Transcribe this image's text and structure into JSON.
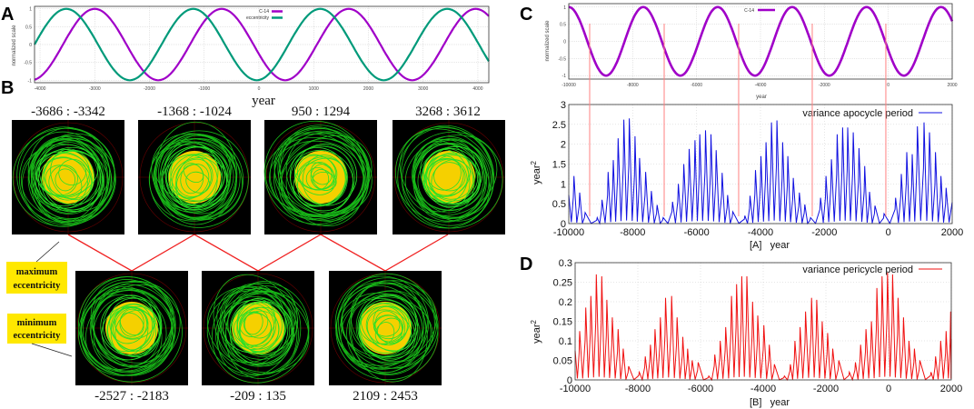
{
  "panels": {
    "a": "A",
    "b": "B",
    "c": "C",
    "d": "D"
  },
  "chart_data": [
    {
      "id": "A",
      "type": "line",
      "xlabel": "year",
      "ylabel": "normalized scale",
      "xlim": [
        -4100,
        4200
      ],
      "ylim": [
        -1.07,
        1.07
      ],
      "xticks": [
        -4000,
        -3000,
        -2000,
        -1000,
        0,
        1000,
        2000,
        3000,
        4000
      ],
      "yticks": [
        -1,
        -0.5,
        0,
        0.5,
        1
      ],
      "grid": true,
      "legend": "top-center",
      "series": [
        {
          "name": "C-14",
          "color": "#a000c8",
          "function": "cosine",
          "period": 2320,
          "peak_year": -3000
        },
        {
          "name": "eccentricity",
          "color": "#009a7a",
          "function": "cosine",
          "period": 2320,
          "peak_year": -3520
        }
      ]
    },
    {
      "id": "C-top",
      "type": "line",
      "xlabel": "year",
      "ylabel": "normalized scale",
      "xlim": [
        -10000,
        2000
      ],
      "ylim": [
        -1.1,
        1.1
      ],
      "xticks": [
        -10000,
        -8000,
        -6000,
        -4000,
        -2000,
        0,
        2000
      ],
      "yticks": [
        -1,
        -0.5,
        0,
        0.5,
        1
      ],
      "grid": true,
      "legend": "top-center",
      "series": [
        {
          "name": "C-14",
          "color": "#a000c8",
          "function": "cosine",
          "period": 2330,
          "peak_year": -10000
        }
      ],
      "marker_lines_years": [
        -9346,
        -7014,
        -4683,
        -2380,
        -77
      ]
    },
    {
      "id": "C-bottom",
      "type": "line",
      "xlabel": "[A]   year",
      "ylabel": "year",
      "ylabel_sup": "2",
      "xlim": [
        -10000,
        2000
      ],
      "ylim": [
        0,
        3
      ],
      "xticks": [
        -10000,
        -8000,
        -6000,
        -4000,
        -2000,
        0,
        2000
      ],
      "yticks": [
        0,
        0.5,
        1,
        1.5,
        2,
        2.5,
        3
      ],
      "grid": true,
      "legend": "top-right",
      "series": [
        {
          "name": "variance apocycle period",
          "color": "#1010e0",
          "peaks": [
            [
              -9839,
              1.2
            ],
            [
              -9659,
              0.78
            ],
            [
              -9489,
              0.28
            ],
            [
              -9110,
              0.15
            ],
            [
              -8958,
              0.6
            ],
            [
              -8769,
              1.3
            ],
            [
              -8608,
              1.6
            ],
            [
              -8456,
              2.15
            ],
            [
              -8276,
              2.62
            ],
            [
              -8106,
              2.65
            ],
            [
              -7926,
              2.2
            ],
            [
              -7784,
              1.65
            ],
            [
              -7595,
              1.3
            ],
            [
              -7415,
              0.82
            ],
            [
              -7235,
              0.47
            ],
            [
              -7046,
              0.15
            ],
            [
              -6752,
              0.55
            ],
            [
              -6572,
              1.0
            ],
            [
              -6401,
              1.5
            ],
            [
              -6231,
              1.88
            ],
            [
              -6051,
              2.1
            ],
            [
              -5900,
              2.25
            ],
            [
              -5720,
              2.35
            ],
            [
              -5549,
              2.25
            ],
            [
              -5388,
              1.85
            ],
            [
              -5199,
              1.28
            ],
            [
              -5028,
              0.72
            ],
            [
              -4867,
              0.3
            ],
            [
              -4488,
              0.2
            ],
            [
              -4327,
              0.7
            ],
            [
              -4157,
              1.35
            ],
            [
              -3986,
              1.7
            ],
            [
              -3826,
              2.05
            ],
            [
              -3655,
              2.55
            ],
            [
              -3485,
              2.6
            ],
            [
              -3305,
              2.05
            ],
            [
              -3144,
              1.7
            ],
            [
              -2973,
              1.15
            ],
            [
              -2784,
              0.78
            ],
            [
              -2613,
              0.48
            ],
            [
              -2434,
              0.15
            ],
            [
              -2121,
              0.65
            ],
            [
              -1950,
              1.2
            ],
            [
              -1780,
              1.62
            ],
            [
              -1600,
              2.25
            ],
            [
              -1430,
              2.42
            ],
            [
              -1269,
              2.42
            ],
            [
              -1098,
              2.3
            ],
            [
              -918,
              1.9
            ],
            [
              -738,
              1.45
            ],
            [
              -587,
              0.8
            ],
            [
              -416,
              0.45
            ],
            [
              -132,
              0.25
            ],
            [
              228,
              0.65
            ],
            [
              408,
              1.25
            ],
            [
              578,
              1.8
            ],
            [
              749,
              1.75
            ],
            [
              910,
              2.45
            ],
            [
              1118,
              2.55
            ],
            [
              1288,
              2.3
            ],
            [
              1478,
              1.8
            ],
            [
              1648,
              1.2
            ],
            [
              1809,
              0.9
            ]
          ]
        }
      ]
    },
    {
      "id": "D",
      "type": "line",
      "xlabel": "[B]   year",
      "ylabel": "year",
      "ylabel_sup": "2",
      "xlim": [
        -10000,
        2000
      ],
      "ylim": [
        0,
        0.3
      ],
      "xticks": [
        -10000,
        -8000,
        -6000,
        -4000,
        -2000,
        0,
        2000
      ],
      "yticks": [
        0,
        0.05,
        0.1,
        0.15,
        0.2,
        0.25,
        0.3
      ],
      "grid": true,
      "legend": "top-right",
      "series": [
        {
          "name": "variance pericycle period",
          "color": "#f01010",
          "peaks": [
            [
              -9855,
              0.125
            ],
            [
              -9662,
              0.185
            ],
            [
              -9498,
              0.215
            ],
            [
              -9325,
              0.27
            ],
            [
              -9151,
              0.265
            ],
            [
              -8987,
              0.205
            ],
            [
              -8814,
              0.16
            ],
            [
              -8630,
              0.13
            ],
            [
              -8466,
              0.08
            ],
            [
              -8293,
              0.035
            ],
            [
              -7955,
              0.02
            ],
            [
              -7762,
              0.06
            ],
            [
              -7598,
              0.09
            ],
            [
              -7453,
              0.13
            ],
            [
              -7280,
              0.16
            ],
            [
              -7116,
              0.21
            ],
            [
              -6923,
              0.215
            ],
            [
              -6749,
              0.16
            ],
            [
              -6566,
              0.11
            ],
            [
              -6412,
              0.08
            ],
            [
              -6267,
              0.05
            ],
            [
              -6074,
              0.045
            ],
            [
              -5737,
              0.01
            ],
            [
              -5544,
              0.065
            ],
            [
              -5370,
              0.1
            ],
            [
              -5196,
              0.135
            ],
            [
              -5013,
              0.215
            ],
            [
              -4849,
              0.245
            ],
            [
              -4685,
              0.265
            ],
            [
              -4521,
              0.265
            ],
            [
              -4338,
              0.2
            ],
            [
              -4174,
              0.165
            ],
            [
              -3981,
              0.14
            ],
            [
              -3807,
              0.09
            ],
            [
              -3643,
              0.04
            ],
            [
              -3325,
              0.01
            ],
            [
              -3132,
              0.04
            ],
            [
              -2987,
              0.1
            ],
            [
              -2823,
              0.135
            ],
            [
              -2650,
              0.175
            ],
            [
              -2457,
              0.21
            ],
            [
              -2293,
              0.205
            ],
            [
              -2119,
              0.15
            ],
            [
              -1946,
              0.12
            ],
            [
              -1782,
              0.08
            ],
            [
              -1589,
              0.05
            ],
            [
              -1251,
              0.02
            ],
            [
              -1058,
              0.045
            ],
            [
              -894,
              0.09
            ],
            [
              -721,
              0.13
            ],
            [
              -547,
              0.15
            ],
            [
              -373,
              0.235
            ],
            [
              -209,
              0.265
            ],
            [
              -36,
              0.275
            ],
            [
              128,
              0.27
            ],
            [
              302,
              0.21
            ],
            [
              476,
              0.16
            ],
            [
              649,
              0.1
            ],
            [
              823,
              0.08
            ],
            [
              997,
              0.05
            ],
            [
              1353,
              0.02
            ],
            [
              1498,
              0.06
            ],
            [
              1662,
              0.1
            ],
            [
              1836,
              0.125
            ],
            [
              1980,
              0.175
            ]
          ]
        }
      ]
    }
  ],
  "orbits": {
    "max_row": [
      "-3686 : -3342",
      "-1368 : -1024",
      "950 : 1294",
      "3268 : 3612"
    ],
    "min_row": [
      "-2527 : -2183",
      "-209 : 135",
      "2109 : 2453"
    ],
    "max_label": [
      "maximum",
      "eccentricity"
    ],
    "min_label": [
      "minimum",
      "eccentricity"
    ]
  }
}
